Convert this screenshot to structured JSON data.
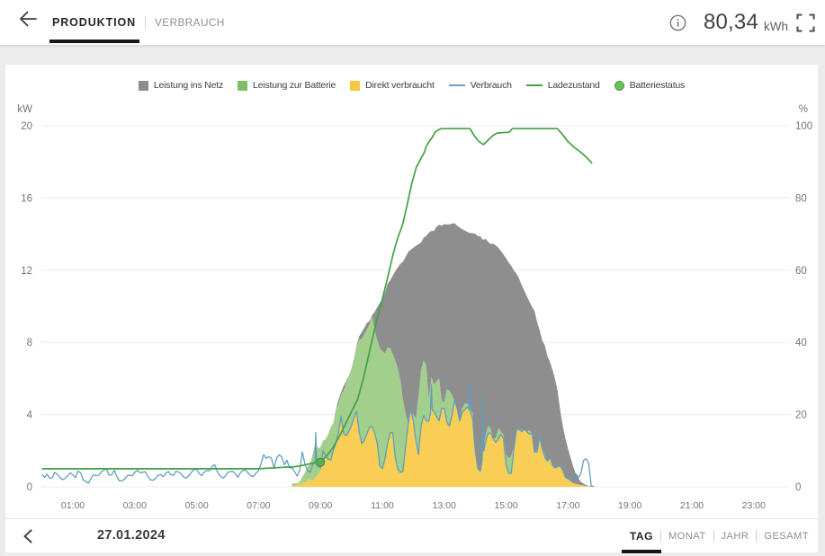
{
  "topbar": {
    "tabs": [
      "PRODUKTION",
      "VERBRAUCH"
    ],
    "active_tab": "PRODUKTION",
    "energy_value": "80,34",
    "energy_unit": "kWh"
  },
  "legend": [
    {
      "key": "leistung-ins-netz",
      "label": "Leistung ins Netz",
      "swatch": "area",
      "color": "#8c8c8c"
    },
    {
      "key": "leistung-zur-batterie",
      "label": "Leistung zur Batterie",
      "swatch": "area",
      "color": "#7dbe66"
    },
    {
      "key": "direkt-verbraucht",
      "label": "Direkt verbraucht",
      "swatch": "area",
      "color": "#f5c842"
    },
    {
      "key": "verbrauch",
      "label": "Verbrauch",
      "swatch": "line",
      "color": "#6f9fba"
    },
    {
      "key": "ladezustand",
      "label": "Ladezustand",
      "swatch": "line",
      "color": "#44a047"
    },
    {
      "key": "batteriestatus",
      "label": "Batteriestatus",
      "swatch": "dot",
      "color": "#6abf5e",
      "border": "#4a9a40"
    }
  ],
  "chart_data": {
    "type": "area",
    "title": "",
    "xlabel": "",
    "ylabel": "kW",
    "y2label": "%",
    "ylim": [
      0,
      20
    ],
    "y2lim": [
      0,
      100
    ],
    "x_unit": "hours",
    "x_ticks": [
      "01:00",
      "03:00",
      "05:00",
      "07:00",
      "09:00",
      "11:00",
      "13:00",
      "15:00",
      "17:00",
      "19:00",
      "21:00",
      "23:00"
    ],
    "y_ticks": [
      0,
      4,
      8,
      12,
      16,
      20
    ],
    "y2_ticks": [
      0,
      20,
      40,
      60,
      80,
      100
    ],
    "grid": true,
    "legend_position": "top",
    "colors": {
      "direct": "#f8ce55",
      "battery": "#a2cf8b",
      "grid": "#8e8e8e",
      "consumption": "#5e9fc0",
      "soc": "#44a047",
      "marker": "#55b054",
      "marker_border": "#3c8f3c"
    },
    "series_stacked": {
      "t": [
        8.083,
        8.167,
        8.25,
        8.333,
        8.417,
        8.5,
        8.583,
        8.667,
        8.75,
        8.833,
        8.917,
        9.0,
        9.083,
        9.167,
        9.25,
        9.333,
        9.417,
        9.5,
        9.583,
        9.667,
        9.75,
        9.833,
        9.917,
        10.0,
        10.083,
        10.167,
        10.25,
        10.333,
        10.417,
        10.5,
        10.583,
        10.667,
        10.75,
        10.833,
        10.917,
        11.0,
        11.083,
        11.167,
        11.25,
        11.333,
        11.417,
        11.5,
        11.583,
        11.667,
        11.75,
        11.833,
        11.917,
        12.0,
        12.083,
        12.167,
        12.25,
        12.333,
        12.417,
        12.5,
        12.583,
        12.667,
        12.75,
        12.833,
        12.917,
        13.0,
        13.083,
        13.167,
        13.25,
        13.333,
        13.417,
        13.5,
        13.583,
        13.667,
        13.75,
        13.833,
        13.917,
        14.0,
        14.083,
        14.167,
        14.25,
        14.333,
        14.417,
        14.5,
        14.583,
        14.667,
        14.75,
        14.833,
        14.917,
        15.0,
        15.083,
        15.167,
        15.25,
        15.333,
        15.417,
        15.5,
        15.583,
        15.667,
        15.75,
        15.833,
        15.917,
        16.0,
        16.083,
        16.167,
        16.25,
        16.333,
        16.417,
        16.5,
        16.583,
        16.667,
        16.75,
        16.833,
        16.917,
        17.0,
        17.083,
        17.167,
        17.25,
        17.333,
        17.417,
        17.5,
        17.583,
        17.667,
        17.75
      ],
      "direct": [
        0.02,
        0.05,
        0.1,
        0.15,
        0.21,
        0.28,
        0.33,
        0.42,
        0.35,
        0.51,
        0.66,
        0.88,
        1.55,
        1.69,
        1.49,
        1.46,
        1.99,
        2.39,
        2.99,
        3.88,
        2.89,
        2.81,
        3.04,
        3.36,
        3.8,
        4.16,
        3.0,
        2.37,
        2.54,
        2.89,
        3.26,
        3.33,
        2.93,
        2.39,
        1.14,
        0.97,
        1.5,
        2.34,
        2.95,
        2.98,
        1.58,
        0.94,
        0.77,
        0.84,
        2.19,
        3.46,
        4.28,
        3.64,
        2.54,
        1.76,
        3.33,
        3.93,
        3.62,
        3.61,
        4.31,
        4.14,
        3.86,
        3.63,
        4.31,
        4.33,
        3.55,
        3.33,
        3.93,
        4.77,
        4.31,
        3.62,
        4.09,
        4.24,
        4.41,
        4.14,
        3.77,
        1.99,
        1.0,
        0.82,
        1.69,
        2.48,
        2.93,
        2.96,
        2.62,
        2.43,
        2.63,
        2.88,
        2.62,
        1.17,
        0.7,
        0.73,
        2.06,
        3.19,
        3.14,
        3.03,
        3.16,
        3.03,
        2.89,
        2.94,
        1.89,
        1.89,
        2.77,
        2.08,
        1.61,
        1.4,
        1.61,
        1.16,
        1.01,
        1.11,
        1.1,
        0.87,
        0.49,
        0.42,
        0.3,
        0.21,
        0.16,
        0.13,
        0.1,
        0.08,
        0.06,
        0.03,
        0.01
      ],
      "battery": [
        0.18,
        0.15,
        0.1,
        0.15,
        0.34,
        0.52,
        0.8,
        0.88,
        1.45,
        1.95,
        1.49,
        1.29,
        1.01,
        0.94,
        1.43,
        1.86,
        1.54,
        1.95,
        1.64,
        1.21,
        2.45,
        2.95,
        3.02,
        3.18,
        3.13,
        3.57,
        5.16,
        5.83,
        5.9,
        5.82,
        5.72,
        6.17,
        5.77,
        5.72,
        6.56,
        6.53,
        5.91,
        5.38,
        4.74,
        4.38,
        5.45,
        5.61,
        5.15,
        3.99,
        1.89,
        0.0,
        0.0,
        0.34,
        1.27,
        3.19,
        3.11,
        3.08,
        3.14,
        1.26,
        1.8,
        1.52,
        1.98,
        2.38,
        0.48,
        0.36,
        1.87,
        2.0,
        1.16,
        0.0,
        0.0,
        0.09,
        0.28,
        0.38,
        0.19,
        0.28,
        0.32,
        0.21,
        0.0,
        0.06,
        0.28,
        0.36,
        0.44,
        0.26,
        0.07,
        0.28,
        0.64,
        0.18,
        0.24,
        0.61,
        0.88,
        1.0,
        0.17,
        0.0,
        0.0,
        0.13,
        0.0,
        0.04,
        0.25,
        0.02,
        0.0,
        0.16,
        0.09,
        0.14,
        0.19,
        0.02,
        0.02,
        0.0,
        0.0,
        0.0,
        0.0,
        0.0,
        0.0,
        0.0,
        0.0,
        0.0,
        0.0,
        0.0,
        0.0,
        0.0,
        0.0,
        0.0,
        0.0
      ],
      "total": [
        0.2,
        0.2,
        0.2,
        0.3,
        0.55,
        0.8,
        1.13,
        1.3,
        1.8,
        2.46,
        2.15,
        2.16,
        2.56,
        2.62,
        2.92,
        3.32,
        3.53,
        4.34,
        4.84,
        5.24,
        5.6,
        5.85,
        6.13,
        6.54,
        7.06,
        7.84,
        8.33,
        8.58,
        8.8,
        9.08,
        9.18,
        9.51,
        9.68,
        9.95,
        10.18,
        10.4,
        10.76,
        11.23,
        11.44,
        11.69,
        11.94,
        12.15,
        12.36,
        12.47,
        12.72,
        13.01,
        13.13,
        13.24,
        13.35,
        13.44,
        13.53,
        13.79,
        13.89,
        14.07,
        14.18,
        14.17,
        14.42,
        14.51,
        14.47,
        14.55,
        14.53,
        14.53,
        14.58,
        14.6,
        14.47,
        14.37,
        14.26,
        14.2,
        14.11,
        14.06,
        14.05,
        14.02,
        13.89,
        13.88,
        13.67,
        13.74,
        13.57,
        13.45,
        13.47,
        13.37,
        13.24,
        13.06,
        12.86,
        12.65,
        12.43,
        12.24,
        11.98,
        11.8,
        11.54,
        11.18,
        10.87,
        10.57,
        10.26,
        9.98,
        9.74,
        9.13,
        8.66,
        8.11,
        7.83,
        7.24,
        6.92,
        6.47,
        5.94,
        5.26,
        4.2,
        3.33,
        2.67,
        2.1,
        1.6,
        1.14,
        0.7,
        0.48,
        0.28,
        0.18,
        0.1,
        0.05,
        0.01
      ]
    },
    "series_consumption": {
      "t": [
        0.0,
        0.083,
        0.167,
        0.25,
        0.333,
        0.417,
        0.5,
        0.583,
        0.667,
        0.75,
        0.833,
        0.917,
        1.0,
        1.083,
        1.167,
        1.25,
        1.333,
        1.417,
        1.5,
        1.583,
        1.667,
        1.75,
        1.833,
        1.917,
        2.0,
        2.083,
        2.167,
        2.25,
        2.333,
        2.417,
        2.5,
        2.583,
        2.667,
        2.75,
        2.833,
        2.917,
        3.0,
        3.083,
        3.167,
        3.25,
        3.333,
        3.417,
        3.5,
        3.583,
        3.667,
        3.75,
        3.833,
        3.917,
        4.0,
        4.083,
        4.167,
        4.25,
        4.333,
        4.417,
        4.5,
        4.583,
        4.667,
        4.75,
        4.833,
        4.917,
        5.0,
        5.083,
        5.167,
        5.25,
        5.333,
        5.417,
        5.5,
        5.583,
        5.667,
        5.75,
        5.833,
        5.917,
        6.0,
        6.083,
        6.167,
        6.25,
        6.333,
        6.417,
        6.5,
        6.583,
        6.667,
        6.75,
        6.833,
        6.917,
        7.0,
        7.083,
        7.167,
        7.25,
        7.333,
        7.417,
        7.5,
        7.583,
        7.667,
        7.75,
        7.833,
        7.917,
        8.0,
        8.083,
        8.167,
        8.25,
        8.333,
        8.417,
        8.5,
        8.583,
        8.667,
        8.75,
        8.822,
        8.85,
        8.878,
        8.917,
        9.0,
        9.083,
        9.167,
        9.25,
        9.333,
        9.417,
        9.5,
        9.583,
        9.667,
        9.75,
        9.833,
        9.917,
        10.0,
        10.083,
        10.167,
        10.25,
        10.333,
        10.417,
        10.5,
        10.583,
        10.667,
        10.75,
        10.833,
        10.917,
        11.0,
        11.083,
        11.167,
        11.25,
        11.333,
        11.417,
        11.5,
        11.583,
        11.667,
        11.75,
        11.833,
        11.917,
        12.0,
        12.083,
        12.167,
        12.25,
        12.333,
        12.417,
        12.5,
        12.555,
        12.583,
        12.611,
        12.667,
        12.75,
        12.833,
        12.917,
        13.0,
        13.083,
        13.167,
        13.25,
        13.333,
        13.417,
        13.5,
        13.583,
        13.667,
        13.75,
        13.805,
        13.833,
        13.861,
        13.917,
        14.0,
        14.083,
        14.167,
        14.222,
        14.25,
        14.278,
        14.333,
        14.417,
        14.5,
        14.583,
        14.667,
        14.75,
        14.833,
        14.917,
        15.0,
        15.083,
        15.167,
        15.25,
        15.333,
        15.417,
        15.5,
        15.583,
        15.667,
        15.75,
        15.833,
        15.917,
        16.0,
        16.083,
        16.167,
        16.25,
        16.333,
        16.417,
        16.5,
        16.583,
        16.667,
        16.75,
        16.833,
        16.917,
        17.0,
        17.083,
        17.167,
        17.25,
        17.333,
        17.417,
        17.5,
        17.583,
        17.667,
        17.75,
        17.833
      ],
      "v": [
        0.7,
        0.52,
        0.7,
        0.49,
        0.5,
        0.8,
        0.7,
        0.52,
        0.4,
        0.47,
        0.61,
        0.77,
        0.66,
        0.51,
        0.87,
        0.78,
        0.38,
        0.31,
        0.2,
        0.47,
        0.68,
        0.61,
        0.64,
        0.82,
        0.92,
        1.0,
        0.65,
        0.65,
        0.91,
        0.6,
        0.33,
        0.34,
        0.41,
        0.6,
        0.65,
        0.61,
        0.81,
        0.92,
        0.78,
        0.8,
        0.84,
        0.61,
        0.39,
        0.37,
        0.44,
        0.63,
        0.68,
        0.56,
        0.73,
        0.85,
        0.68,
        0.63,
        0.86,
        0.82,
        0.71,
        0.53,
        0.48,
        0.62,
        0.82,
        0.97,
        0.96,
        0.73,
        0.62,
        0.83,
        0.9,
        0.89,
        1.14,
        1.22,
        0.84,
        0.62,
        0.49,
        0.56,
        0.8,
        0.84,
        0.86,
        0.71,
        0.53,
        0.79,
        0.9,
        0.93,
        0.76,
        0.61,
        0.57,
        0.76,
        0.89,
        1.31,
        1.78,
        1.58,
        1.67,
        1.58,
        1.03,
        1.59,
        1.78,
        1.64,
        1.23,
        1.48,
        1.06,
        1.05,
        0.83,
        0.59,
        0.96,
        1.93,
        1.24,
        0.89,
        0.8,
        1.26,
        1.31,
        3.0,
        1.21,
        1.15,
        1.03,
        2.01,
        1.72,
        1.52,
        1.49,
        2.02,
        2.42,
        3.02,
        3.91,
        2.92,
        2.84,
        3.07,
        3.39,
        3.83,
        4.19,
        3.03,
        2.4,
        2.57,
        2.92,
        3.29,
        3.36,
        2.96,
        2.42,
        1.17,
        1.0,
        1.53,
        2.37,
        2.98,
        3.0,
        1.62,
        0.97,
        0.8,
        0.87,
        2.22,
        3.49,
        4.31,
        3.67,
        2.57,
        1.79,
        3.36,
        3.96,
        3.65,
        3.64,
        4.1,
        5.65,
        4.28,
        4.17,
        3.89,
        3.66,
        4.34,
        4.36,
        3.58,
        3.36,
        3.96,
        4.8,
        4.34,
        3.65,
        4.12,
        4.27,
        4.44,
        4.26,
        5.85,
        4.05,
        3.8,
        2.02,
        1.03,
        0.85,
        1.43,
        5.05,
        1.99,
        2.51,
        2.96,
        2.99,
        2.65,
        2.46,
        2.66,
        2.91,
        2.65,
        1.2,
        0.73,
        0.76,
        2.09,
        3.22,
        3.17,
        3.06,
        3.19,
        3.06,
        2.92,
        2.97,
        1.92,
        1.92,
        2.8,
        2.11,
        1.64,
        1.43,
        1.64,
        1.19,
        1.04,
        1.14,
        1.13,
        0.9,
        0.53,
        0.45,
        0.35,
        0.42,
        0.72,
        0.51,
        0.74,
        1.47,
        1.55,
        1.34,
        0.03,
        0.03
      ]
    },
    "series_soc": [
      [
        0.0,
        5.0
      ],
      [
        7.0,
        5.0
      ],
      [
        7.6,
        5.3
      ],
      [
        8.2,
        5.6
      ],
      [
        8.45,
        6.0
      ],
      [
        8.7,
        6.5
      ],
      [
        9.0,
        6.8
      ],
      [
        9.2,
        8.6
      ],
      [
        9.4,
        10.8
      ],
      [
        9.6,
        13.8
      ],
      [
        9.8,
        17.2
      ],
      [
        10.0,
        20.8
      ],
      [
        10.2,
        24.2
      ],
      [
        10.4,
        30.5
      ],
      [
        10.6,
        38.0
      ],
      [
        10.8,
        45.5
      ],
      [
        11.0,
        52.0
      ],
      [
        11.2,
        59.0
      ],
      [
        11.35,
        64.5
      ],
      [
        11.5,
        69.0
      ],
      [
        11.65,
        72.5
      ],
      [
        11.8,
        78.0
      ],
      [
        11.95,
        84.0
      ],
      [
        12.1,
        88.5
      ],
      [
        12.25,
        91.0
      ],
      [
        12.35,
        92.5
      ],
      [
        12.42,
        94.3
      ],
      [
        12.5,
        95.5
      ],
      [
        12.6,
        96.6
      ],
      [
        12.7,
        98.2
      ],
      [
        12.8,
        98.8
      ],
      [
        12.9,
        99.2
      ],
      [
        13.83,
        99.2
      ],
      [
        13.95,
        97.5
      ],
      [
        14.1,
        95.8
      ],
      [
        14.27,
        94.8
      ],
      [
        14.45,
        96.3
      ],
      [
        14.6,
        97.5
      ],
      [
        14.72,
        98.0
      ],
      [
        15.1,
        98.2
      ],
      [
        15.2,
        99.2
      ],
      [
        16.65,
        99.2
      ],
      [
        16.8,
        97.8
      ],
      [
        17.0,
        95.6
      ],
      [
        17.2,
        94.0
      ],
      [
        17.45,
        92.4
      ],
      [
        17.6,
        91.2
      ],
      [
        17.78,
        89.6
      ]
    ],
    "soc_marker": {
      "t": 9.0,
      "value": 6.8
    }
  },
  "bottombar": {
    "date": "27.01.2024",
    "ranges": [
      {
        "label": "TAG",
        "active": true
      },
      {
        "label": "MONAT",
        "active": false
      },
      {
        "label": "JAHR",
        "active": false
      },
      {
        "label": "GESAMT",
        "active": false
      }
    ]
  }
}
